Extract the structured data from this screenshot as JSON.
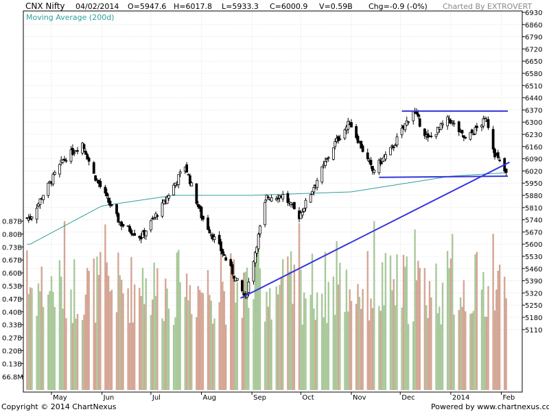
{
  "header": {
    "symbol": "CNX Nifty",
    "date": "04/02/2014",
    "open": "O=5947.6",
    "high": "H=6017.8",
    "low": "L=5933.3",
    "close": "C=6000.9",
    "volume": "V=0.59B",
    "change": "Chg=-0.9 (-0%)",
    "credit": "Charted By EXTROVERT"
  },
  "indicator_label": "Moving Average (200d)",
  "footer": {
    "copyright": "Copyright © 2014 ChartNexus",
    "powered": "Powered by www.chartnexus.com"
  },
  "colors": {
    "up_volume": "#a8c89a",
    "down_volume": "#d4a594",
    "moving_average": "#2aa198",
    "trendline": "#3333dd",
    "grid": "#c8c8c8"
  },
  "chart_data": {
    "type": "candlestick",
    "title": "CNX Nifty",
    "y_axis_right": {
      "ticks": [
        6930,
        6860,
        6790,
        6720,
        6650,
        6580,
        6510,
        6440,
        6370,
        6300,
        6230,
        6160,
        6090,
        6020,
        5950,
        5880,
        5810,
        5740,
        5670,
        5600,
        5530,
        5460,
        5390,
        5320,
        5250,
        5180,
        5110
      ],
      "ylim": [
        5040,
        6930
      ]
    },
    "volume_axis_left": {
      "ticks": [
        "0.87B",
        "0.80B",
        "0.73B",
        "0.67B",
        "0.60B",
        "0.53B",
        "0.47B",
        "0.40B",
        "0.33B",
        "0.27B",
        "0.20B",
        "0.13B",
        "66.8M"
      ]
    },
    "x_axis": {
      "labels": [
        "May",
        "Jun",
        "Jul",
        "Aug",
        "Sep",
        "Oct",
        "Nov",
        "Dec",
        "2014",
        "Feb"
      ]
    },
    "price_anchors": [
      {
        "date": "2013-04-18",
        "close": 5750
      },
      {
        "date": "2013-04-25",
        "close": 5870
      },
      {
        "date": "2013-05-08",
        "close": 6080
      },
      {
        "date": "2013-05-20",
        "close": 6180
      },
      {
        "date": "2013-05-27",
        "close": 6000
      },
      {
        "date": "2013-06-12",
        "close": 5720
      },
      {
        "date": "2013-06-25",
        "close": 5640
      },
      {
        "date": "2013-07-08",
        "close": 5820
      },
      {
        "date": "2013-07-22",
        "close": 6050
      },
      {
        "date": "2013-08-01",
        "close": 5760
      },
      {
        "date": "2013-08-14",
        "close": 5550
      },
      {
        "date": "2013-08-28",
        "close": 5290
      },
      {
        "date": "2013-09-10",
        "close": 5870
      },
      {
        "date": "2013-09-20",
        "close": 5880
      },
      {
        "date": "2013-09-30",
        "close": 5760
      },
      {
        "date": "2013-10-10",
        "close": 5950
      },
      {
        "date": "2013-10-22",
        "close": 6180
      },
      {
        "date": "2013-10-31",
        "close": 6300
      },
      {
        "date": "2013-11-14",
        "close": 6020
      },
      {
        "date": "2013-11-26",
        "close": 6150
      },
      {
        "date": "2013-12-09",
        "close": 6370
      },
      {
        "date": "2013-12-18",
        "close": 6200
      },
      {
        "date": "2013-12-31",
        "close": 6320
      },
      {
        "date": "2014-01-10",
        "close": 6200
      },
      {
        "date": "2014-01-23",
        "close": 6320
      },
      {
        "date": "2014-01-28",
        "close": 6120
      },
      {
        "date": "2014-02-04",
        "close": 6000
      }
    ],
    "ma_anchors": [
      {
        "date": "2013-04-18",
        "ma": 5600
      },
      {
        "date": "2013-06-01",
        "ma": 5820
      },
      {
        "date": "2013-07-15",
        "ma": 5880
      },
      {
        "date": "2013-09-01",
        "ma": 5880
      },
      {
        "date": "2013-11-01",
        "ma": 5900
      },
      {
        "date": "2014-01-01",
        "ma": 5990
      },
      {
        "date": "2014-02-04",
        "ma": 6010
      }
    ],
    "trendlines": [
      {
        "from": {
          "date": "2013-12-02",
          "price": 6363
        },
        "to": {
          "date": "2014-02-05",
          "price": 6363
        }
      },
      {
        "from": {
          "date": "2013-11-18",
          "price": 5983
        },
        "to": {
          "date": "2014-02-05",
          "price": 5990
        }
      },
      {
        "from": {
          "date": "2013-08-25",
          "price": 5290
        },
        "to": {
          "date": "2014-02-06",
          "price": 6070
        }
      }
    ],
    "volume_range": [
      "66.8M",
      "0.87B"
    ]
  }
}
